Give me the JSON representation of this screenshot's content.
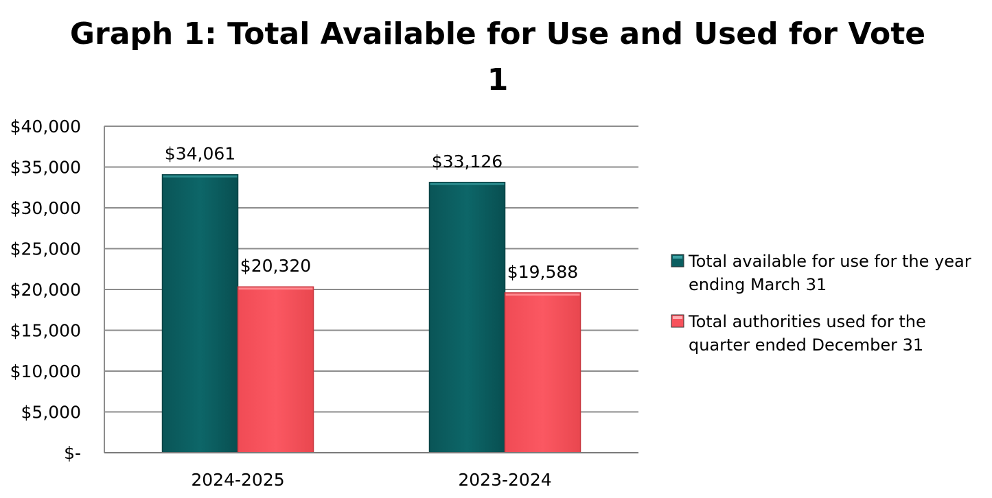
{
  "chart_data": {
    "type": "bar",
    "title_lines": [
      "Graph 1: Total Available for Use and Used for Vote",
      "1"
    ],
    "categories": [
      "2024-2025",
      "2023-2024"
    ],
    "series": [
      {
        "name": "Total available for use for the year ending March 31",
        "name_lines": [
          "Total available for use for the year",
          "ending March 31"
        ],
        "color": "#0b5e60",
        "values": [
          34061,
          33126
        ],
        "labels": [
          "$34,061",
          "$33,126"
        ]
      },
      {
        "name": "Total authorities used for the quarter ended December 31",
        "name_lines": [
          "Total authorities used for the",
          "quarter ended December 31"
        ],
        "color": "#f7525c",
        "values": [
          20320,
          19588
        ],
        "labels": [
          "$20,320",
          "$19,588"
        ]
      }
    ],
    "ylim": [
      0,
      40000
    ],
    "yticks": [
      0,
      5000,
      10000,
      15000,
      20000,
      25000,
      30000,
      35000,
      40000
    ],
    "ytick_labels": [
      "$-",
      "$5,000",
      "$10,000",
      "$15,000",
      "$20,000",
      "$25,000",
      "$30,000",
      "$35,000",
      "$40,000"
    ],
    "xlabel": "",
    "ylabel": "",
    "grid": true,
    "legend": "right"
  }
}
